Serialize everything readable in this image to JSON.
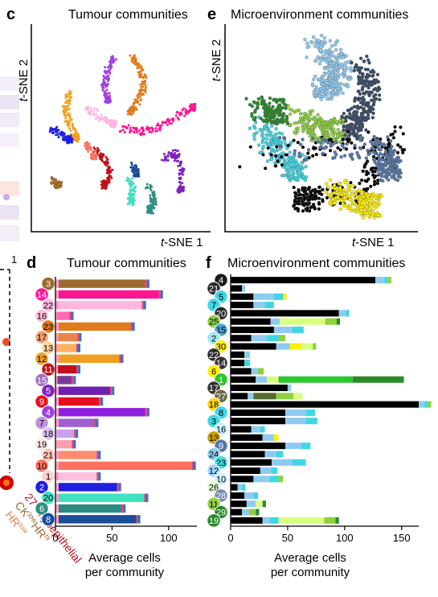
{
  "panels": {
    "c": {
      "letter": "c",
      "title": "Tumour communities",
      "xlabel_prefix": "t",
      "xlabel": "-SNE 1",
      "ylabel_prefix": "t",
      "ylabel": "-SNE 2"
    },
    "e": {
      "letter": "e",
      "title": "Microenvironment communities",
      "xlabel_prefix": "t",
      "xlabel": "-SNE 1",
      "ylabel_prefix": "t",
      "ylabel": "-SNE 2"
    },
    "d": {
      "letter": "d",
      "title": "Tumour communities",
      "xlabel_line1": "Average cells",
      "xlabel_line2": "per community"
    },
    "f": {
      "letter": "f",
      "title": "Microenvironment communities",
      "xlabel_line1": "Average cells",
      "xlabel_line2": "per community"
    }
  },
  "left_edge": {
    "tick_1": "1",
    "label_27": "27",
    "label_myo": "Myoepithelial",
    "label_ck": "CK",
    "label_low": "low",
    "label_hr": "HR",
    "label_hi": "hi",
    "label_hr2": "HR",
    "label_low2": "low"
  },
  "colors": {
    "background": "#ffffff",
    "f_black": "#000000",
    "f_lightblue": "#8ecbf0",
    "f_cyan": "#3fd7e6",
    "f_yellow": "#ffef00",
    "f_green": "#8fd13f",
    "f_darkgreen": "#2a8a2a"
  },
  "chart_data": [
    {
      "panel": "d",
      "type": "bar",
      "orientation": "horizontal",
      "stacked": true,
      "xlim": [
        0,
        125
      ],
      "xticks": [
        0,
        50,
        100
      ],
      "categories": [
        "3",
        "14",
        "22",
        "16",
        "23",
        "17",
        "13",
        "12",
        "11",
        "15",
        "5",
        "9",
        "4",
        "7",
        "18",
        "19",
        "21",
        "10",
        "1",
        "2",
        "20",
        "6",
        "8"
      ],
      "badge_colors": [
        "#9b6a2f",
        "#ff1493",
        "#ffb6e1",
        "#ffc0e0",
        "#e07b1a",
        "#f0a070",
        "#ffd39b",
        "#f0a020",
        "#c0101a",
        "#a070c0",
        "#8020c0",
        "#e81020",
        "#a040e0",
        "#c090e0",
        "#d8c0f0",
        "#ffe4e4",
        "#ffc0b0",
        "#ff7060",
        "#ffd0d0",
        "#2020e0",
        "#40e0c0",
        "#309080",
        "#1a4d9a"
      ],
      "main_colors": [
        "#9b6a2f",
        "#ff1493",
        "#ffb6e1",
        "#ff69b4",
        "#e07b1a",
        "#e8864a",
        "#ffb060",
        "#f0a020",
        "#c0101a",
        "#7a3a9a",
        "#7020b0",
        "#e81020",
        "#9020e0",
        "#a060d0",
        "#c8a0f0",
        "#ff9eb0",
        "#ff8c70",
        "#ff7060",
        "#ffc0e0",
        "#2020e0",
        "#40e0c0",
        "#2a8a80",
        "#1a4d9a"
      ],
      "values": [
        83,
        95,
        80,
        16,
        70,
        23,
        22,
        60,
        22,
        18,
        52,
        42,
        83,
        38,
        20,
        18,
        40,
        124,
        40,
        58,
        82,
        62,
        75
      ]
    },
    {
      "panel": "f",
      "type": "bar",
      "orientation": "horizontal",
      "stacked": true,
      "xlim": [
        0,
        165
      ],
      "xticks": [
        0,
        50,
        100,
        150
      ],
      "categories": [
        "4",
        "21",
        "5",
        "7",
        "20",
        "25",
        "15",
        "2",
        "30",
        "22",
        "14",
        "6",
        "1",
        "17",
        "27",
        "18",
        "8",
        "3",
        "16",
        "13",
        "9",
        "24",
        "23",
        "12",
        "10",
        "26",
        "28",
        "11",
        "29",
        "19"
      ],
      "badge_colors": [
        "#1a1a1a",
        "#2b2b2b",
        "#3fd7e6",
        "#3fd7e6",
        "#2b2b2b",
        "#8fd13f",
        "#4aa3d9",
        "#a0e8f0",
        "#ffef00",
        "#2b2b2b",
        "#333333",
        "#ffef00",
        "#2fc52f",
        "#333333",
        "#6b6b4a",
        "#ffd400",
        "#3fd7e6",
        "#3fd7e6",
        "#c8f0ff",
        "#c8a000",
        "#5577aa",
        "#8ecbf0",
        "#40e0e0",
        "#a0d8ff",
        "#c8f0ff",
        "#e0f8d0",
        "#7788aa",
        "#8fd13f",
        "#2a8a2a",
        "#2a8a2a"
      ],
      "segments": [
        [
          [
            "#000000",
            127
          ],
          [
            "#8ecbf0",
            8
          ],
          [
            "#3fd7e6",
            3
          ],
          [
            "#8fd13f",
            3
          ]
        ],
        [
          [
            "#000000",
            10
          ],
          [
            "#8ecbf0",
            3
          ]
        ],
        [
          [
            "#000000",
            20
          ],
          [
            "#8ecbf0",
            18
          ],
          [
            "#3fd7e6",
            8
          ],
          [
            "#ffef00",
            3
          ]
        ],
        [
          [
            "#000000",
            20
          ],
          [
            "#8ecbf0",
            10
          ],
          [
            "#3fd7e6",
            8
          ]
        ],
        [
          [
            "#000000",
            95
          ],
          [
            "#8ecbf0",
            6
          ],
          [
            "#3fd7e6",
            3
          ]
        ],
        [
          [
            "#000000",
            35
          ],
          [
            "#8ecbf0",
            8
          ],
          [
            "#d8ff80",
            40
          ],
          [
            "#8fd13f",
            10
          ],
          [
            "#2a8a2a",
            3
          ]
        ],
        [
          [
            "#000000",
            38
          ],
          [
            "#8ecbf0",
            16
          ],
          [
            "#3fd7e6",
            10
          ]
        ],
        [
          [
            "#000000",
            18
          ],
          [
            "#8ecbf0",
            14
          ],
          [
            "#3fd7e6",
            10
          ],
          [
            "#8fd13f",
            6
          ]
        ],
        [
          [
            "#000000",
            40
          ],
          [
            "#8ecbf0",
            12
          ],
          [
            "#ffef00",
            10
          ],
          [
            "#d8ff80",
            10
          ],
          [
            "#8fd13f",
            3
          ]
        ],
        [
          [
            "#000000",
            12
          ],
          [
            "#8ecbf0",
            5
          ]
        ],
        [
          [
            "#000000",
            12
          ],
          [
            "#3fd7e6",
            5
          ]
        ],
        [
          [
            "#000000",
            18
          ],
          [
            "#8ecbf0",
            6
          ],
          [
            "#8fd13f",
            5
          ]
        ],
        [
          [
            "#000000",
            22
          ],
          [
            "#8ecbf0",
            10
          ],
          [
            "#d8ff80",
            10
          ],
          [
            "#2fc52f",
            65
          ],
          [
            "#2a8a2a",
            45
          ]
        ],
        [
          [
            "#000000",
            50
          ],
          [
            "#8ecbf0",
            3
          ]
        ],
        [
          [
            "#000000",
            15
          ],
          [
            "#8ecbf0",
            5
          ],
          [
            "#556b2f",
            20
          ],
          [
            "#8fd13f",
            15
          ],
          [
            "#d8ff80",
            8
          ]
        ],
        [
          [
            "#000000",
            165
          ],
          [
            "#8ecbf0",
            5
          ],
          [
            "#3fd7e6",
            3
          ],
          [
            "#8fd13f",
            3
          ]
        ],
        [
          [
            "#000000",
            48
          ],
          [
            "#8ecbf0",
            18
          ],
          [
            "#3fd7e6",
            8
          ]
        ],
        [
          [
            "#000000",
            48
          ],
          [
            "#8ecbf0",
            18
          ],
          [
            "#3fd7e6",
            10
          ]
        ],
        [
          [
            "#000000",
            18
          ],
          [
            "#8ecbf0",
            8
          ],
          [
            "#3fd7e6",
            4
          ]
        ],
        [
          [
            "#000000",
            28
          ],
          [
            "#8ecbf0",
            10
          ],
          [
            "#ffef00",
            4
          ]
        ],
        [
          [
            "#000000",
            48
          ],
          [
            "#8ecbf0",
            14
          ],
          [
            "#3fd7e6",
            8
          ]
        ],
        [
          [
            "#000000",
            30
          ],
          [
            "#8ecbf0",
            10
          ],
          [
            "#3fd7e6",
            6
          ]
        ],
        [
          [
            "#000000",
            36
          ],
          [
            "#8ecbf0",
            18
          ],
          [
            "#3fd7e6",
            12
          ]
        ],
        [
          [
            "#000000",
            26
          ],
          [
            "#8ecbf0",
            10
          ],
          [
            "#3fd7e6",
            5
          ]
        ],
        [
          [
            "#000000",
            20
          ],
          [
            "#8ecbf0",
            14
          ],
          [
            "#3fd7e6",
            8
          ],
          [
            "#8fd13f",
            4
          ]
        ],
        [
          [
            "#000000",
            6
          ],
          [
            "#8ecbf0",
            4
          ],
          [
            "#3fd7e6",
            3
          ]
        ],
        [
          [
            "#000000",
            12
          ],
          [
            "#8ecbf0",
            8
          ],
          [
            "#3fd7e6",
            4
          ]
        ],
        [
          [
            "#000000",
            14
          ],
          [
            "#8ecbf0",
            8
          ],
          [
            "#d8ff80",
            6
          ],
          [
            "#2a8a2a",
            3
          ]
        ],
        [
          [
            "#000000",
            10
          ],
          [
            "#8ecbf0",
            6
          ],
          [
            "#8fd13f",
            6
          ],
          [
            "#2a8a2a",
            3
          ]
        ],
        [
          [
            "#000000",
            28
          ],
          [
            "#8ecbf0",
            6
          ],
          [
            "#3fd7e6",
            8
          ],
          [
            "#d8ff80",
            40
          ],
          [
            "#8fd13f",
            10
          ],
          [
            "#2a8a2a",
            3
          ]
        ]
      ]
    },
    {
      "panel": "c",
      "type": "scatter",
      "clusters": [
        {
          "color": "#e07b1a",
          "pts": [
            [
              0.55,
              0.15
            ],
            [
              0.6,
              0.2
            ],
            [
              0.63,
              0.28
            ],
            [
              0.6,
              0.35
            ],
            [
              0.55,
              0.42
            ]
          ]
        },
        {
          "color": "#a040e0",
          "pts": [
            [
              0.45,
              0.16
            ],
            [
              0.42,
              0.22
            ],
            [
              0.4,
              0.3
            ],
            [
              0.42,
              0.36
            ]
          ]
        },
        {
          "color": "#f0a020",
          "pts": [
            [
              0.2,
              0.33
            ],
            [
              0.18,
              0.4
            ],
            [
              0.2,
              0.48
            ],
            [
              0.24,
              0.55
            ]
          ]
        },
        {
          "color": "#ff1493",
          "pts": [
            [
              0.5,
              0.5
            ],
            [
              0.6,
              0.52
            ],
            [
              0.7,
              0.5
            ],
            [
              0.8,
              0.45
            ],
            [
              0.9,
              0.4
            ]
          ]
        },
        {
          "color": "#ffb6e1",
          "pts": [
            [
              0.3,
              0.4
            ],
            [
              0.38,
              0.45
            ],
            [
              0.45,
              0.48
            ]
          ]
        },
        {
          "color": "#2020e0",
          "pts": [
            [
              0.1,
              0.5
            ],
            [
              0.15,
              0.53
            ],
            [
              0.2,
              0.56
            ]
          ]
        },
        {
          "color": "#c0101a",
          "pts": [
            [
              0.35,
              0.6
            ],
            [
              0.4,
              0.66
            ],
            [
              0.43,
              0.72
            ],
            [
              0.4,
              0.78
            ]
          ]
        },
        {
          "color": "#ff7060",
          "pts": [
            [
              0.3,
              0.58
            ],
            [
              0.34,
              0.64
            ]
          ]
        },
        {
          "color": "#1a4d9a",
          "pts": [
            [
              0.56,
              0.68
            ],
            [
              0.58,
              0.72
            ]
          ]
        },
        {
          "color": "#40e0c0",
          "pts": [
            [
              0.54,
              0.75
            ],
            [
              0.56,
              0.8
            ],
            [
              0.55,
              0.86
            ]
          ]
        },
        {
          "color": "#309080",
          "pts": [
            [
              0.65,
              0.78
            ],
            [
              0.68,
              0.85
            ],
            [
              0.66,
              0.9
            ]
          ]
        },
        {
          "color": "#8020c0",
          "pts": [
            [
              0.74,
              0.65
            ],
            [
              0.8,
              0.62
            ],
            [
              0.84,
              0.7
            ],
            [
              0.83,
              0.8
            ]
          ]
        },
        {
          "color": "#9b6a2f",
          "pts": [
            [
              0.1,
              0.75
            ],
            [
              0.14,
              0.78
            ]
          ]
        }
      ]
    },
    {
      "panel": "e",
      "type": "scatter",
      "clusters": [
        {
          "color": "#8ecbf0",
          "pts": [
            [
              0.45,
              0.1
            ],
            [
              0.55,
              0.15
            ],
            [
              0.6,
              0.25
            ],
            [
              0.5,
              0.3
            ]
          ]
        },
        {
          "color": "#3a4a66",
          "pts": [
            [
              0.7,
              0.2
            ],
            [
              0.75,
              0.3
            ],
            [
              0.7,
              0.4
            ],
            [
              0.65,
              0.5
            ]
          ]
        },
        {
          "color": "#8fd13f",
          "pts": [
            [
              0.35,
              0.45
            ],
            [
              0.45,
              0.5
            ],
            [
              0.55,
              0.52
            ]
          ]
        },
        {
          "color": "#3fd7e6",
          "pts": [
            [
              0.15,
              0.5
            ],
            [
              0.25,
              0.6
            ],
            [
              0.35,
              0.7
            ]
          ]
        },
        {
          "color": "#000000",
          "pts": [
            [
              0.1,
              0.65
            ],
            [
              0.9,
              0.55
            ],
            [
              0.7,
              0.8
            ],
            [
              0.4,
              0.85
            ]
          ]
        },
        {
          "color": "#ffef00",
          "pts": [
            [
              0.55,
              0.8
            ],
            [
              0.65,
              0.85
            ],
            [
              0.75,
              0.88
            ]
          ]
        },
        {
          "color": "#2a8a2a",
          "pts": [
            [
              0.15,
              0.4
            ],
            [
              0.25,
              0.42
            ]
          ]
        },
        {
          "color": "#5577aa",
          "pts": [
            [
              0.3,
              0.6
            ],
            [
              0.8,
              0.6
            ],
            [
              0.85,
              0.7
            ]
          ]
        }
      ]
    }
  ]
}
